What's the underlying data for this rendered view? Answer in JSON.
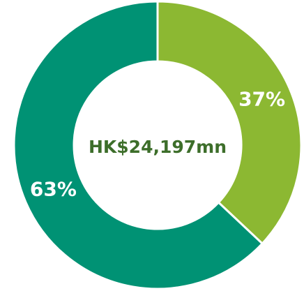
{
  "chart_data": {
    "type": "pie",
    "values": [
      37,
      63
    ],
    "value_labels": [
      "37%",
      "63%"
    ],
    "colors": [
      "#8cb832",
      "#009274"
    ],
    "center_label": "HK$24,197mn"
  }
}
